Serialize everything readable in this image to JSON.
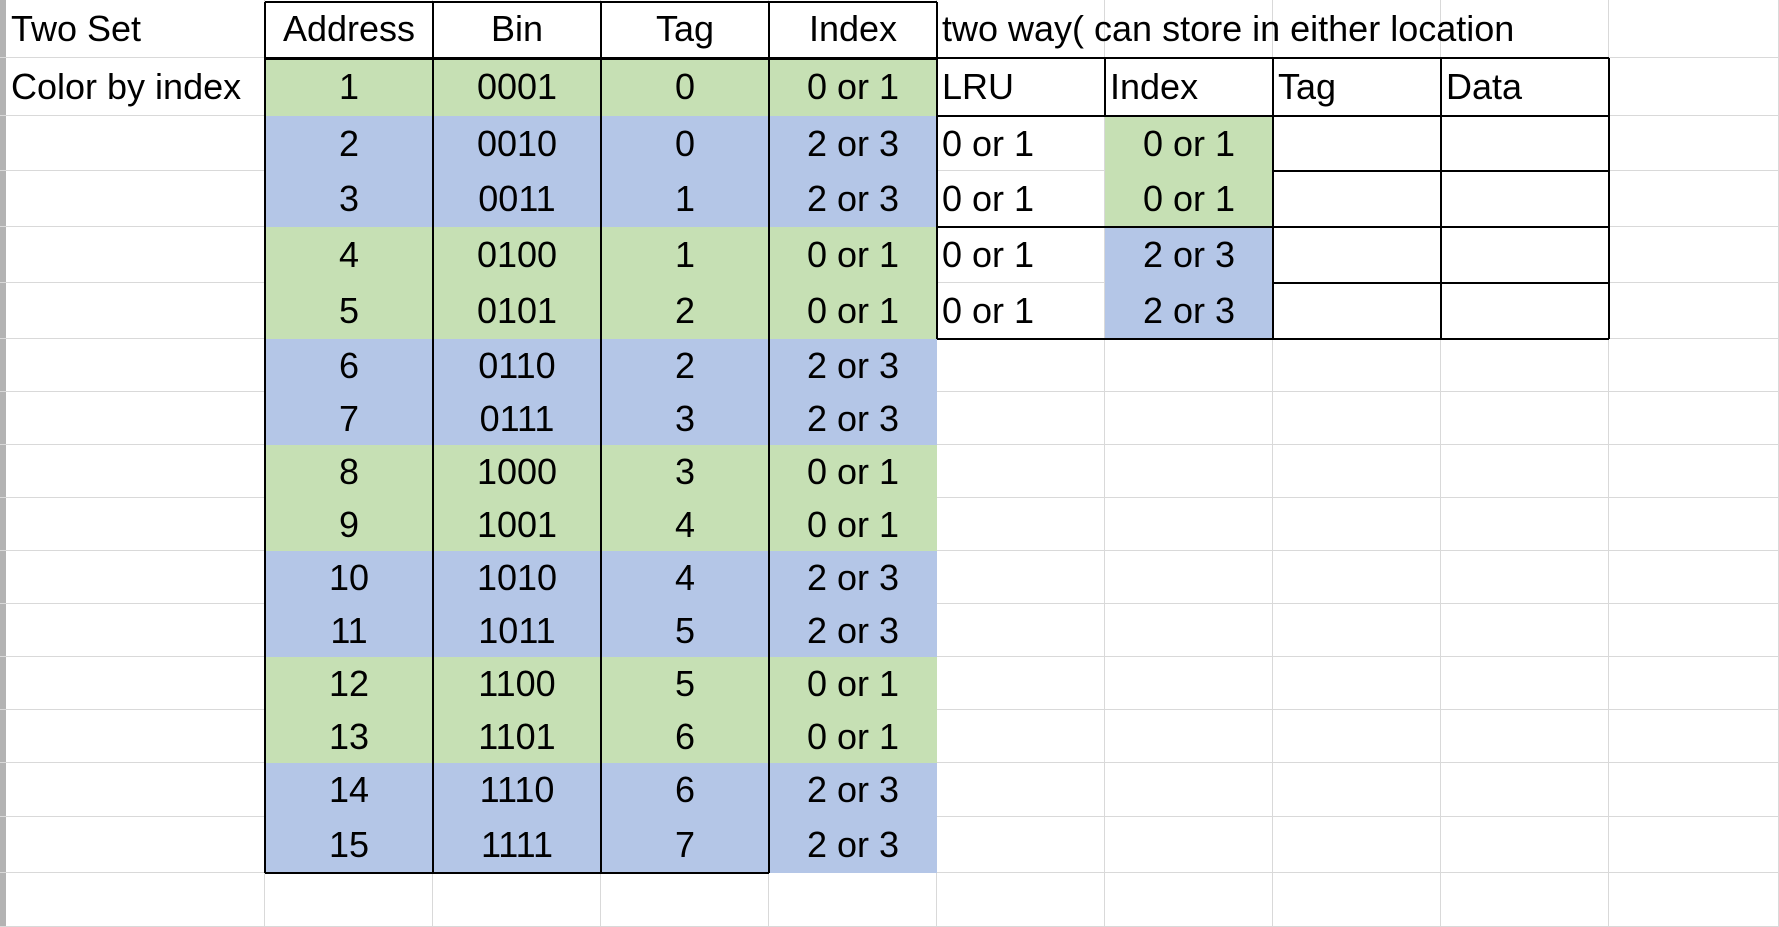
{
  "colors": {
    "green": "#c6e0b4",
    "blue": "#b4c6e7",
    "gridline": "#d9d9d9",
    "border": "#000000"
  },
  "labels": {
    "two_set": "Two Set",
    "color_by_index": "Color by index",
    "two_way": "two way( can store in either location"
  },
  "address_table": {
    "headers": [
      "Address",
      "Bin",
      "Tag",
      "Index"
    ],
    "rows": [
      {
        "address": "1",
        "bin": "0001",
        "tag": "0",
        "index": "0 or 1",
        "color": "green"
      },
      {
        "address": "2",
        "bin": "0010",
        "tag": "0",
        "index": "2 or 3",
        "color": "blue"
      },
      {
        "address": "3",
        "bin": "0011",
        "tag": "1",
        "index": "2 or 3",
        "color": "blue"
      },
      {
        "address": "4",
        "bin": "0100",
        "tag": "1",
        "index": "0 or 1",
        "color": "green"
      },
      {
        "address": "5",
        "bin": "0101",
        "tag": "2",
        "index": "0 or 1",
        "color": "green"
      },
      {
        "address": "6",
        "bin": "0110",
        "tag": "2",
        "index": "2 or 3",
        "color": "blue"
      },
      {
        "address": "7",
        "bin": "0111",
        "tag": "3",
        "index": "2 or 3",
        "color": "blue"
      },
      {
        "address": "8",
        "bin": "1000",
        "tag": "3",
        "index": "0 or 1",
        "color": "green"
      },
      {
        "address": "9",
        "bin": "1001",
        "tag": "4",
        "index": "0 or 1",
        "color": "green"
      },
      {
        "address": "10",
        "bin": "1010",
        "tag": "4",
        "index": "2 or 3",
        "color": "blue"
      },
      {
        "address": "11",
        "bin": "1011",
        "tag": "5",
        "index": "2 or 3",
        "color": "blue"
      },
      {
        "address": "12",
        "bin": "1100",
        "tag": "5",
        "index": "0 or 1",
        "color": "green"
      },
      {
        "address": "13",
        "bin": "1101",
        "tag": "6",
        "index": "0 or 1",
        "color": "green"
      },
      {
        "address": "14",
        "bin": "1110",
        "tag": "6",
        "index": "2 or 3",
        "color": "blue"
      },
      {
        "address": "15",
        "bin": "1111",
        "tag": "7",
        "index": "2 or 3",
        "color": "blue"
      }
    ]
  },
  "cache_table": {
    "headers": [
      "LRU",
      "Index",
      "Tag",
      "Data"
    ],
    "rows": [
      {
        "lru": "0 or 1",
        "index": "0 or 1",
        "tag": "",
        "data": "",
        "color": "green"
      },
      {
        "lru": "0 or 1",
        "index": "0 or 1",
        "tag": "",
        "data": "",
        "color": "green"
      },
      {
        "lru": "0 or 1",
        "index": "2 or 3",
        "tag": "",
        "data": "",
        "color": "blue"
      },
      {
        "lru": "0 or 1",
        "index": "2 or 3",
        "tag": "",
        "data": "",
        "color": "blue"
      }
    ]
  }
}
